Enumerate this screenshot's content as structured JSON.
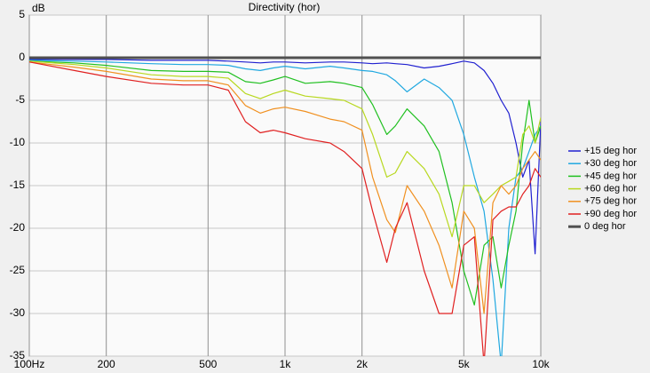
{
  "chart_data": {
    "type": "line",
    "title": "Directivity (hor)",
    "y_label": "dB",
    "xscale": "log",
    "grid": true,
    "legend": "right",
    "x": [
      100,
      150,
      200,
      300,
      400,
      500,
      600,
      700,
      800,
      900,
      1000,
      1200,
      1500,
      1700,
      2000,
      2200,
      2500,
      2700,
      3000,
      3500,
      4000,
      4500,
      5000,
      5500,
      6000,
      6500,
      7000,
      7500,
      8000,
      8500,
      9000,
      9500,
      10000
    ],
    "xlim": [
      100,
      10000
    ],
    "xticks": [
      {
        "value": 100,
        "label": "100Hz"
      },
      200,
      500,
      {
        "value": 1000,
        "label": "1k"
      },
      {
        "value": 2000,
        "label": "2k"
      },
      {
        "value": 5000,
        "label": "5k"
      },
      {
        "value": 10000,
        "label": "10k"
      }
    ],
    "ylim": [
      -35,
      5
    ],
    "yticks": [
      5,
      0,
      -5,
      -10,
      -15,
      -20,
      -25,
      -30,
      -35
    ],
    "series": [
      {
        "name": "+15 deg hor",
        "color": "#2020d0",
        "values": [
          -0.2,
          -0.2,
          -0.2,
          -0.3,
          -0.3,
          -0.3,
          -0.4,
          -0.5,
          -0.6,
          -0.5,
          -0.5,
          -0.6,
          -0.5,
          -0.5,
          -0.6,
          -0.7,
          -0.6,
          -0.7,
          -0.8,
          -1.2,
          -1.0,
          -0.7,
          -0.4,
          -0.6,
          -1.5,
          -3,
          -5,
          -6.5,
          -10,
          -14,
          -12,
          -23,
          -7.5
        ]
      },
      {
        "name": "+30 deg hor",
        "color": "#20a8e0",
        "values": [
          -0.3,
          -0.4,
          -0.5,
          -0.7,
          -0.8,
          -0.8,
          -0.9,
          -1.3,
          -1.5,
          -1.2,
          -1.0,
          -1.3,
          -1.0,
          -1.2,
          -1.5,
          -1.6,
          -2.0,
          -2.7,
          -4,
          -2.5,
          -3.5,
          -5,
          -9,
          -14,
          -18,
          -26,
          -36,
          -20,
          -14,
          -13,
          -11,
          -9,
          -8
        ]
      },
      {
        "name": "+45 deg hor",
        "color": "#20c020",
        "values": [
          -0.4,
          -0.6,
          -0.9,
          -1.5,
          -1.6,
          -1.6,
          -1.7,
          -2.8,
          -3.0,
          -2.6,
          -2.2,
          -3.0,
          -2.8,
          -3.0,
          -3.5,
          -5.5,
          -9,
          -8,
          -6,
          -8,
          -11,
          -17,
          -25,
          -29,
          -22,
          -21,
          -27,
          -22,
          -18,
          -10,
          -5,
          -10,
          -8
        ]
      },
      {
        "name": "+60 deg hor",
        "color": "#b8d820",
        "values": [
          -0.4,
          -0.8,
          -1.2,
          -2.0,
          -2.2,
          -2.2,
          -2.4,
          -4.2,
          -4.8,
          -4.2,
          -3.8,
          -4.5,
          -4.8,
          -5,
          -6,
          -9,
          -14,
          -13.5,
          -11,
          -13,
          -16,
          -21,
          -15,
          -15,
          -17,
          -16,
          -15,
          -14.5,
          -14,
          -9,
          -8,
          -10,
          -7
        ]
      },
      {
        "name": "+75 deg hor",
        "color": "#f09020",
        "values": [
          -0.5,
          -1.1,
          -1.6,
          -2.5,
          -2.7,
          -2.7,
          -3.2,
          -5.6,
          -6.5,
          -6.0,
          -5.8,
          -6.3,
          -7.2,
          -7.5,
          -8.5,
          -14,
          -19,
          -20.5,
          -15,
          -18,
          -22,
          -27,
          -18,
          -20,
          -30,
          -17,
          -15,
          -16,
          -15,
          -13,
          -12,
          -11,
          -12
        ]
      },
      {
        "name": "+90 deg hor",
        "color": "#e02020",
        "values": [
          -0.5,
          -1.5,
          -2.2,
          -3.0,
          -3.2,
          -3.2,
          -3.8,
          -7.5,
          -8.8,
          -8.5,
          -8.8,
          -9.5,
          -10,
          -11,
          -13,
          -18,
          -24,
          -20,
          -17,
          -25,
          -30,
          -30,
          -22,
          -21,
          -36,
          -19,
          -18,
          -17.5,
          -17.5,
          -16,
          -15,
          -13,
          -14
        ]
      },
      {
        "name": "0 deg hor",
        "color": "#505050",
        "width": 3,
        "values": [
          0,
          0,
          0,
          0,
          0,
          0,
          0,
          0,
          0,
          0,
          0,
          0,
          0,
          0,
          0,
          0,
          0,
          0,
          0,
          0,
          0,
          0,
          0,
          0,
          0,
          0,
          0,
          0,
          0,
          0,
          0,
          0,
          0
        ]
      }
    ]
  }
}
